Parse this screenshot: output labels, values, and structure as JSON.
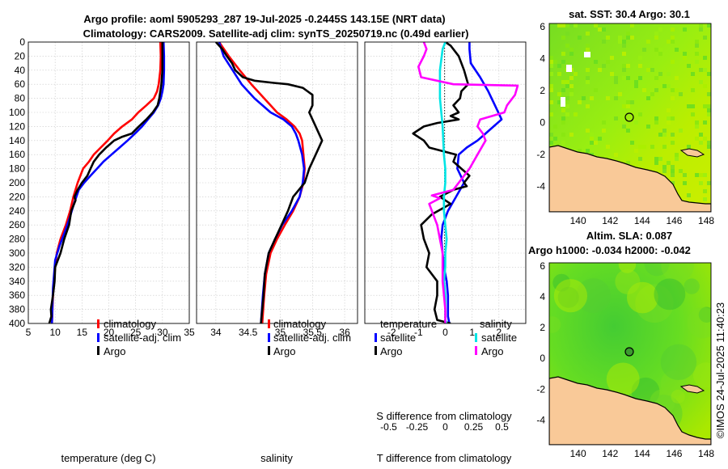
{
  "title_lines": [
    "Argo profile: aoml 5905293_287 19-Jul-2025 -0.2445S 143.15E (NRT data)",
    "Climatology: CARS2009. Satellite-adj clim: synTS_20250719.nc (0.49d earlier)"
  ],
  "colors": {
    "climatology": "#ff0000",
    "satellite": "#0000ff",
    "argo": "#000000",
    "sal_satellite": "#00e5e5",
    "sal_argo": "#ff00ff",
    "land": "#f9c998",
    "sst_field": "#99ee11",
    "sla_field": "#44cc33"
  },
  "legend": {
    "climatology": "climatology",
    "satellite": "satellite-adj. clim",
    "argo": "Argo"
  },
  "diff_legend": {
    "t_header": "temperature",
    "s_header": "salinity",
    "satellite": "satellite",
    "argo": "Argo"
  },
  "sst_map": {
    "title": "sat. SST: 30.4 Argo: 30.1"
  },
  "sla_map": {
    "title_line1": "Altim. SLA: 0.087",
    "title_line2": "Argo h1000: -0.034 h2000: -0.042"
  },
  "footer": "©IMOS 24-Jul-2025 11:40:23",
  "chart_data": [
    {
      "type": "line",
      "id": "temperature",
      "xlabel": "temperature (deg C)",
      "ylabel": "",
      "xlim": [
        5,
        35
      ],
      "ylim": [
        400,
        0
      ],
      "xticks": [
        5,
        10,
        15,
        20,
        25,
        30,
        35
      ],
      "yticks": [
        0,
        20,
        40,
        60,
        80,
        100,
        120,
        140,
        160,
        180,
        200,
        220,
        240,
        260,
        280,
        300,
        320,
        340,
        360,
        380,
        400
      ],
      "series": [
        {
          "name": "climatology",
          "color": "#ff0000",
          "x": [
            29.6,
            29.7,
            29.6,
            29.3,
            29.0,
            28.4,
            27.0,
            25.5,
            24.3,
            22.5,
            21.0,
            19.8,
            18.5,
            17.2,
            16.3,
            15.2,
            14.2,
            13.4,
            12.8,
            12.0,
            11.0,
            10.3,
            10.0,
            9.6,
            9.4
          ],
          "y": [
            0,
            20,
            40,
            60,
            70,
            80,
            90,
            100,
            110,
            120,
            130,
            140,
            150,
            160,
            170,
            180,
            200,
            220,
            240,
            260,
            280,
            300,
            320,
            360,
            400
          ]
        },
        {
          "name": "satellite-adj. clim",
          "color": "#0000ff",
          "x": [
            30.2,
            30.3,
            30.3,
            30.2,
            30.0,
            29.7,
            29.2,
            28.4,
            27.3,
            26.2,
            24.9,
            23.5,
            22.0,
            20.5,
            19.0,
            17.8,
            16.6,
            15.4,
            14.4,
            13.5,
            12.7,
            11.8,
            10.8,
            10.0,
            9.6,
            9.4
          ],
          "y": [
            0,
            20,
            40,
            60,
            70,
            80,
            90,
            100,
            110,
            120,
            130,
            140,
            150,
            160,
            170,
            180,
            190,
            200,
            210,
            230,
            250,
            270,
            290,
            310,
            350,
            400
          ]
        },
        {
          "name": "Argo",
          "color": "#000000",
          "x": [
            30.0,
            30.0,
            30.0,
            29.8,
            29.6,
            29.4,
            29.1,
            28.2,
            27.0,
            25.6,
            24.3,
            22.4,
            21.0,
            19.5,
            18.2,
            17.2,
            16.6,
            16.0,
            15.0,
            14.2,
            13.6,
            13.8,
            13.0,
            12.6,
            11.7,
            11.0,
            10.0,
            9.9,
            9.6,
            9.2,
            9.3,
            9.1,
            8.9
          ],
          "y": [
            0,
            20,
            40,
            60,
            70,
            80,
            90,
            100,
            110,
            120,
            130,
            135,
            140,
            150,
            160,
            170,
            180,
            190,
            200,
            210,
            220,
            225,
            240,
            260,
            280,
            300,
            320,
            340,
            360,
            380,
            390,
            395,
            400
          ]
        }
      ]
    },
    {
      "type": "line",
      "id": "salinity",
      "xlabel": "salinity",
      "ylabel": "",
      "xlim": [
        33.7,
        36.2
      ],
      "ylim": [
        400,
        0
      ],
      "xticks": [
        34,
        34.5,
        35,
        35.5,
        36
      ],
      "series": [
        {
          "name": "climatology",
          "color": "#ff0000",
          "x": [
            34.05,
            34.2,
            34.37,
            34.55,
            34.75,
            34.95,
            35.1,
            35.22,
            35.3,
            35.34,
            35.36,
            35.38,
            35.36,
            35.3,
            35.2,
            35.07,
            34.95,
            34.85,
            34.78,
            34.75,
            34.72
          ],
          "y": [
            0,
            20,
            40,
            60,
            80,
            100,
            110,
            120,
            130,
            140,
            160,
            180,
            200,
            220,
            240,
            260,
            280,
            300,
            330,
            360,
            400
          ]
        },
        {
          "name": "satellite-adj. clim",
          "color": "#0000ff",
          "x": [
            34.05,
            34.12,
            34.26,
            34.4,
            34.6,
            34.85,
            35.05,
            35.18,
            35.24,
            35.28,
            35.34,
            35.37,
            35.35,
            35.3,
            35.18,
            35.03,
            34.92,
            34.82,
            34.76,
            34.73,
            34.7
          ],
          "y": [
            0,
            20,
            40,
            60,
            80,
            100,
            110,
            120,
            130,
            140,
            160,
            180,
            200,
            220,
            240,
            260,
            280,
            300,
            330,
            360,
            400
          ]
        },
        {
          "name": "Argo",
          "color": "#000000",
          "x": [
            34.0,
            34.1,
            34.17,
            34.25,
            34.3,
            34.42,
            34.6,
            34.9,
            35.12,
            35.35,
            35.5,
            35.5,
            35.45,
            35.55,
            35.65,
            35.55,
            35.45,
            35.38,
            35.2,
            35.12,
            35.02,
            34.92,
            34.82,
            34.76,
            34.74,
            34.7
          ],
          "y": [
            0,
            10,
            20,
            30,
            40,
            50,
            55,
            58,
            60,
            65,
            75,
            90,
            100,
            120,
            140,
            160,
            180,
            200,
            220,
            240,
            260,
            280,
            300,
            330,
            360,
            400
          ]
        }
      ]
    },
    {
      "type": "line",
      "id": "difference",
      "xlabel": "T difference from climatology",
      "xlabel2": "S difference from climatology",
      "xlim": [
        -3,
        3
      ],
      "ylim": [
        400,
        0
      ],
      "xticks": [
        -2,
        -1,
        0,
        1,
        2
      ],
      "s_xticks": [
        -0.5,
        -0.25,
        0,
        0.25,
        0.5
      ],
      "series": [
        {
          "name": "temperature satellite",
          "color": "#0000ff",
          "x": [
            0.9,
            0.9,
            0.95,
            1.3,
            1.6,
            1.85,
            2.1,
            1.8,
            1.5,
            1.2,
            0.8,
            0.5,
            0.45,
            0.7,
            0.4,
            0.1,
            -0.1,
            -0.15,
            -0.1,
            -0.05,
            0.05,
            0.1,
            0.1,
            0.1,
            0.15
          ],
          "y": [
            0,
            10,
            30,
            50,
            70,
            90,
            110,
            120,
            130,
            140,
            150,
            160,
            180,
            200,
            220,
            240,
            260,
            280,
            300,
            320,
            340,
            360,
            380,
            390,
            400
          ]
        },
        {
          "name": "temperature Argo",
          "color": "#000000",
          "x": [
            0.0,
            0.2,
            0.5,
            0.7,
            0.85,
            0.6,
            0.55,
            0.3,
            0.5,
            0.2,
            0.5,
            -0.3,
            -0.8,
            -1.2,
            -0.8,
            -0.6,
            0.4,
            0.3,
            0.6,
            0.9,
            0.7,
            0.8,
            0.3,
            -0.2,
            0.2,
            -0.5,
            -0.9,
            -0.8,
            -0.6,
            -0.7,
            -0.3,
            -0.3,
            -0.4,
            -0.3,
            0.2
          ],
          "y": [
            0,
            5,
            20,
            40,
            60,
            70,
            80,
            90,
            100,
            105,
            110,
            115,
            120,
            130,
            140,
            150,
            160,
            170,
            180,
            190,
            200,
            205,
            210,
            220,
            230,
            245,
            260,
            280,
            300,
            320,
            340,
            360,
            380,
            395,
            400
          ]
        },
        {
          "name": "salinity satellite",
          "color": "#00e5e5",
          "x": [
            0.0,
            -0.1,
            -0.2,
            -0.2,
            -0.1,
            -0.05,
            0.0,
            0.0,
            -0.05,
            -0.05,
            0.0,
            0.05,
            0.0,
            0.0,
            -0.05,
            0.0,
            0.0,
            0.0,
            0.0,
            0.0,
            0.05
          ],
          "y": [
            0,
            10,
            40,
            80,
            120,
            160,
            180,
            200,
            220,
            240,
            260,
            280,
            300,
            320,
            340,
            360,
            370,
            380,
            390,
            395,
            400
          ]
        },
        {
          "name": "salinity Argo",
          "color": "#ff00ff",
          "x": [
            -0.8,
            -0.7,
            -0.8,
            -1.0,
            -0.9,
            0.3,
            2.7,
            2.6,
            2.3,
            2.2,
            1.3,
            1.2,
            1.4,
            1.5,
            1.2,
            0.9,
            0.5,
            0.3,
            -0.5,
            -0.2,
            -0.6,
            -0.3,
            -0.1,
            -0.1,
            0.0,
            0.0
          ],
          "y": [
            0,
            10,
            20,
            35,
            50,
            60,
            62,
            75,
            90,
            100,
            110,
            120,
            130,
            140,
            160,
            180,
            200,
            210,
            218,
            222,
            230,
            260,
            300,
            340,
            380,
            400
          ]
        }
      ]
    },
    {
      "type": "heatmap",
      "id": "sst-map",
      "title": "sat. SST: 30.4 Argo: 30.1",
      "xlim": [
        138.2,
        148.3
      ],
      "ylim": [
        -5.6,
        6.2
      ],
      "xticks": [
        140,
        142,
        144,
        146,
        148
      ],
      "yticks": [
        -4,
        -2,
        0,
        2,
        4,
        6
      ],
      "argo_position": {
        "lon": 143.15,
        "lat": 0.25
      }
    },
    {
      "type": "heatmap",
      "id": "sla-map",
      "title": "Altim. SLA: 0.087",
      "xlim": [
        138.2,
        148.3
      ],
      "ylim": [
        -5.6,
        6.2
      ],
      "xticks": [
        140,
        142,
        144,
        146,
        148
      ],
      "yticks": [
        -4,
        -2,
        0,
        2,
        4,
        6
      ],
      "argo_position": {
        "lon": 143.15,
        "lat": 0.25
      }
    }
  ]
}
